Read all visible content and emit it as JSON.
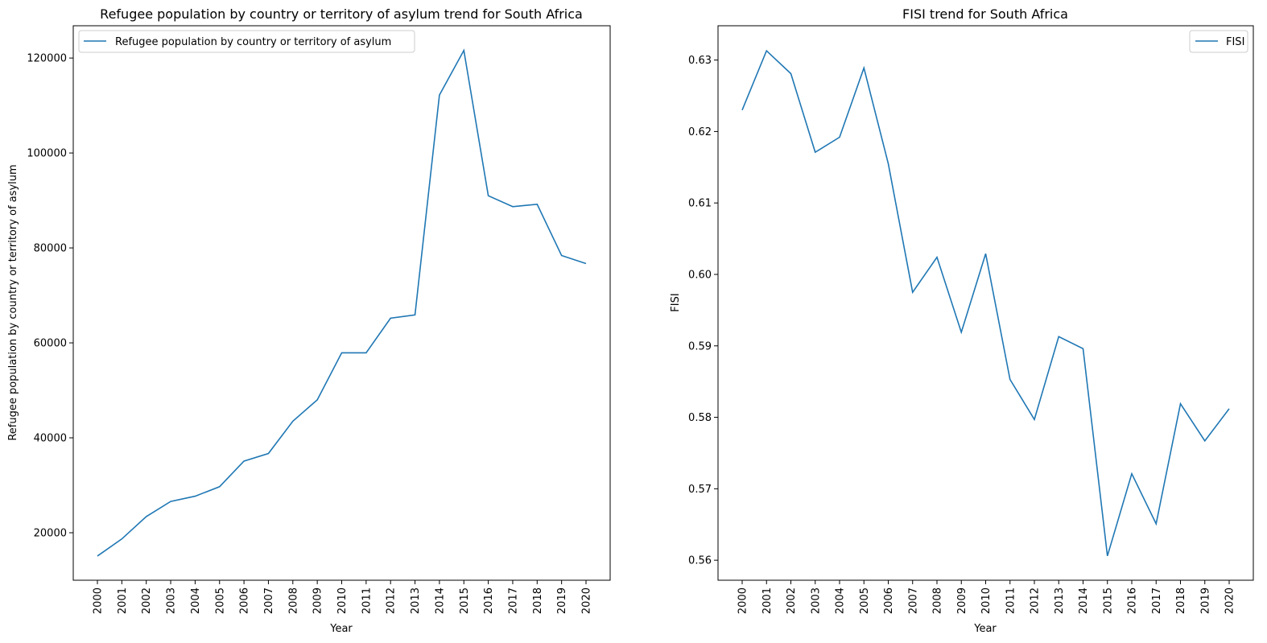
{
  "chart_data": [
    {
      "type": "line",
      "title": "Refugee population by country or territory of asylum trend for South Africa",
      "xlabel": "Year",
      "ylabel": "Refugee population by country or territory of asylum",
      "categories": [
        "2000",
        "2001",
        "2002",
        "2003",
        "2004",
        "2005",
        "2006",
        "2007",
        "2008",
        "2009",
        "2010",
        "2011",
        "2012",
        "2013",
        "2014",
        "2015",
        "2016",
        "2017",
        "2018",
        "2019",
        "2020"
      ],
      "yticks": [
        20000,
        40000,
        60000,
        80000,
        100000,
        120000
      ],
      "ylim": [
        10000,
        126800
      ],
      "series": [
        {
          "name": "Refugee population by country or territory of asylum",
          "color": "#1f77b4",
          "values": [
            15100,
            18700,
            23400,
            26600,
            27700,
            29700,
            35100,
            36700,
            43500,
            48000,
            57900,
            57900,
            65200,
            65900,
            112200,
            121600,
            91000,
            88700,
            89200,
            78400,
            76700
          ]
        }
      ],
      "legend": "top-left"
    },
    {
      "type": "line",
      "title": "FISI trend for South Africa",
      "xlabel": "Year",
      "ylabel": "FISI",
      "categories": [
        "2000",
        "2001",
        "2002",
        "2003",
        "2004",
        "2005",
        "2006",
        "2007",
        "2008",
        "2009",
        "2010",
        "2011",
        "2012",
        "2013",
        "2014",
        "2015",
        "2016",
        "2017",
        "2018",
        "2019",
        "2020"
      ],
      "yticks": [
        0.56,
        0.57,
        0.58,
        0.59,
        0.6,
        0.61,
        0.62,
        0.63
      ],
      "ylim": [
        0.5572,
        0.6348
      ],
      "series": [
        {
          "name": "FISI",
          "color": "#1f77b4",
          "values": [
            0.623,
            0.6313,
            0.6281,
            0.6171,
            0.6192,
            0.6289,
            0.6155,
            0.5975,
            0.6024,
            0.5919,
            0.6029,
            0.5853,
            0.5797,
            0.5913,
            0.5896,
            0.5606,
            0.5721,
            0.5651,
            0.5819,
            0.5767,
            0.5812
          ]
        }
      ],
      "legend": "top-right"
    }
  ]
}
